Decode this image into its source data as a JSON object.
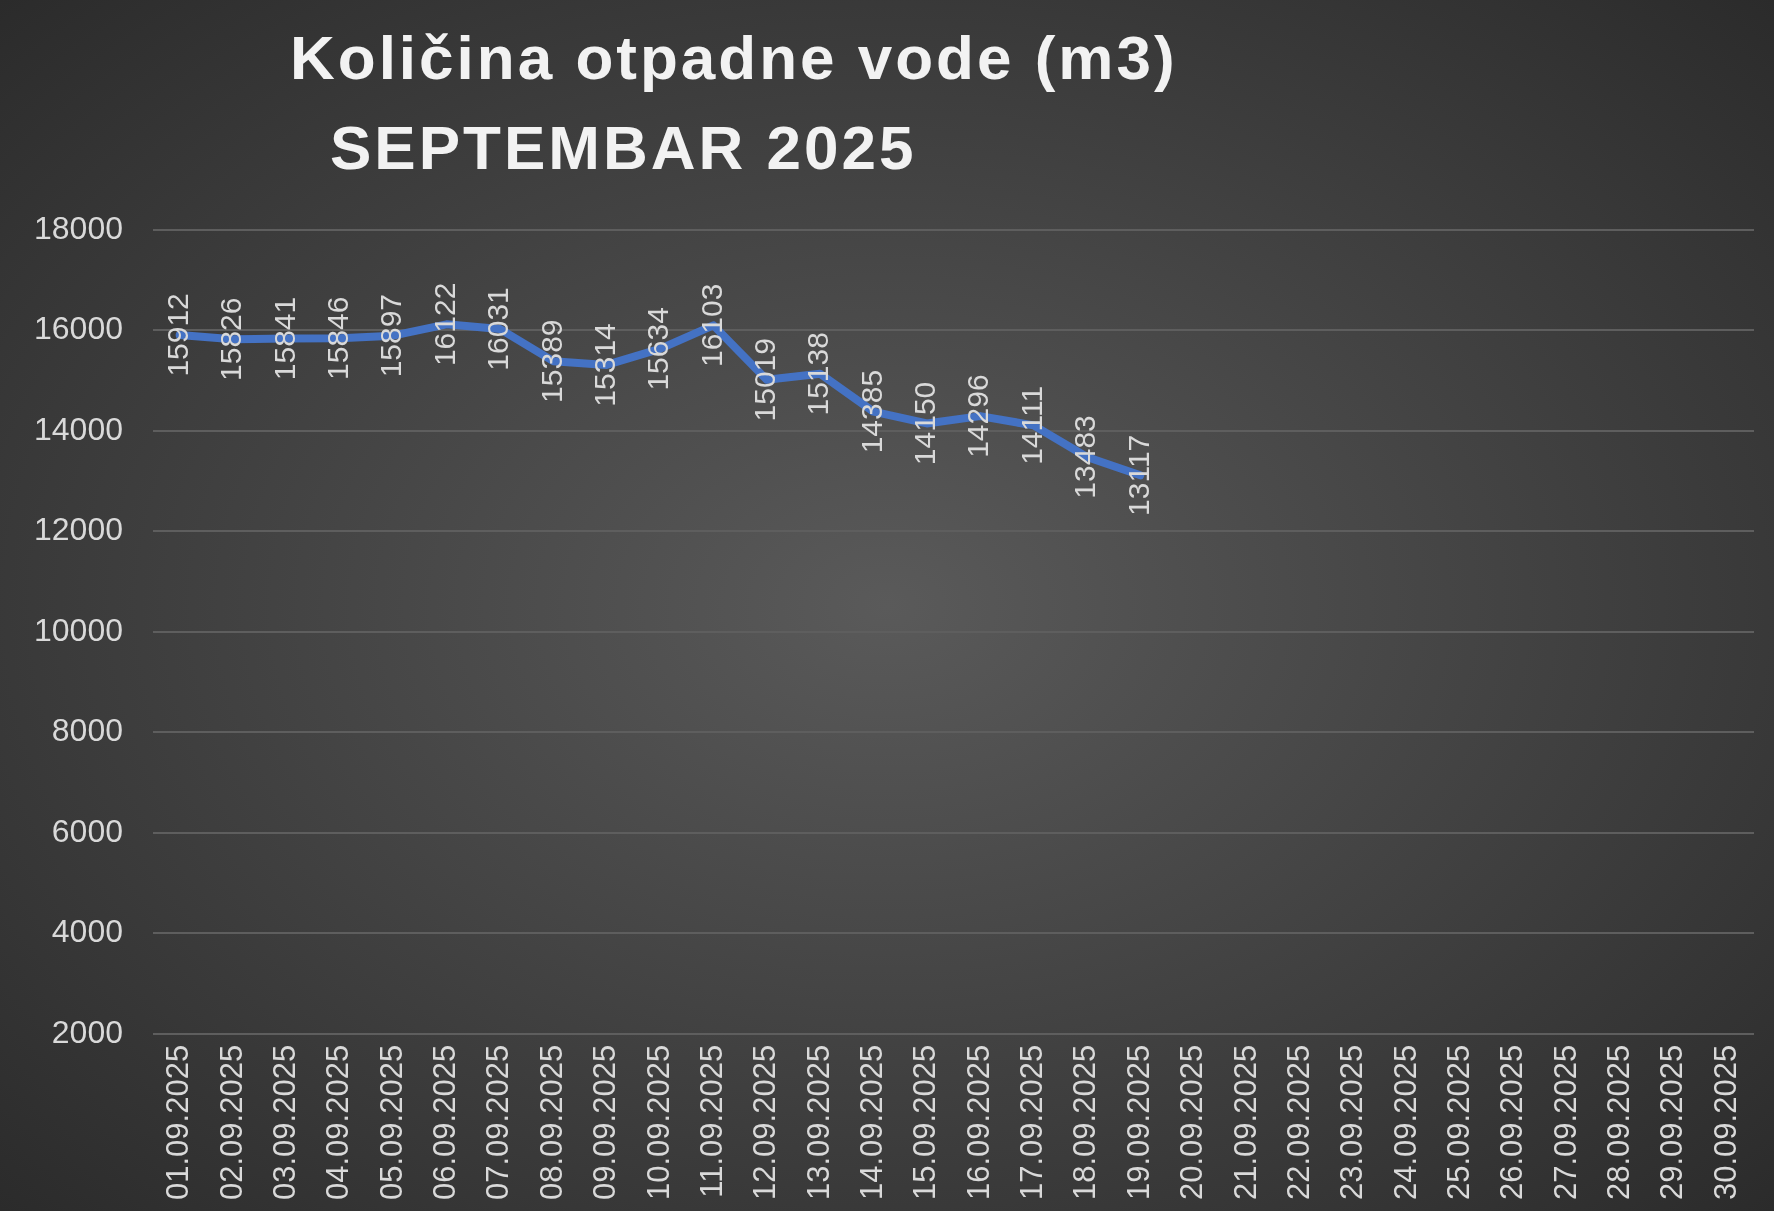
{
  "chart_data": {
    "type": "line",
    "title": "Količina otpadne vode (m3)",
    "subtitle": "SEPTEMBAR 2025",
    "categories": [
      "01.09.2025",
      "02.09.2025",
      "03.09.2025",
      "04.09.2025",
      "05.09.2025",
      "06.09.2025",
      "07.09.2025",
      "08.09.2025",
      "09.09.2025",
      "10.09.2025",
      "11.09.2025",
      "12.09.2025",
      "13.09.2025",
      "14.09.2025",
      "15.09.2025",
      "16.09.2025",
      "17.09.2025",
      "18.09.2025",
      "19.09.2025",
      "20.09.2025",
      "21.09.2025",
      "22.09.2025",
      "23.09.2025",
      "24.09.2025",
      "25.09.2025",
      "26.09.2025",
      "27.09.2025",
      "28.09.2025",
      "29.09.2025",
      "30.09.2025"
    ],
    "series": [
      {
        "color": "#4472c4",
        "values": [
          15912,
          15826,
          15841,
          15846,
          15897,
          16122,
          16031,
          15389,
          15314,
          15634,
          16103,
          15019,
          15138,
          14385,
          14150,
          14296,
          14111,
          13483,
          13117,
          null,
          null,
          null,
          null,
          null,
          null,
          null,
          null,
          null,
          null,
          null
        ]
      }
    ],
    "ylim": [
      2000,
      18000
    ],
    "yticks": [
      2000,
      4000,
      6000,
      8000,
      10000,
      12000,
      14000,
      16000,
      18000
    ],
    "grid": "y",
    "legend": false,
    "marker": "none",
    "line_style": "solid",
    "data_labels": true
  }
}
